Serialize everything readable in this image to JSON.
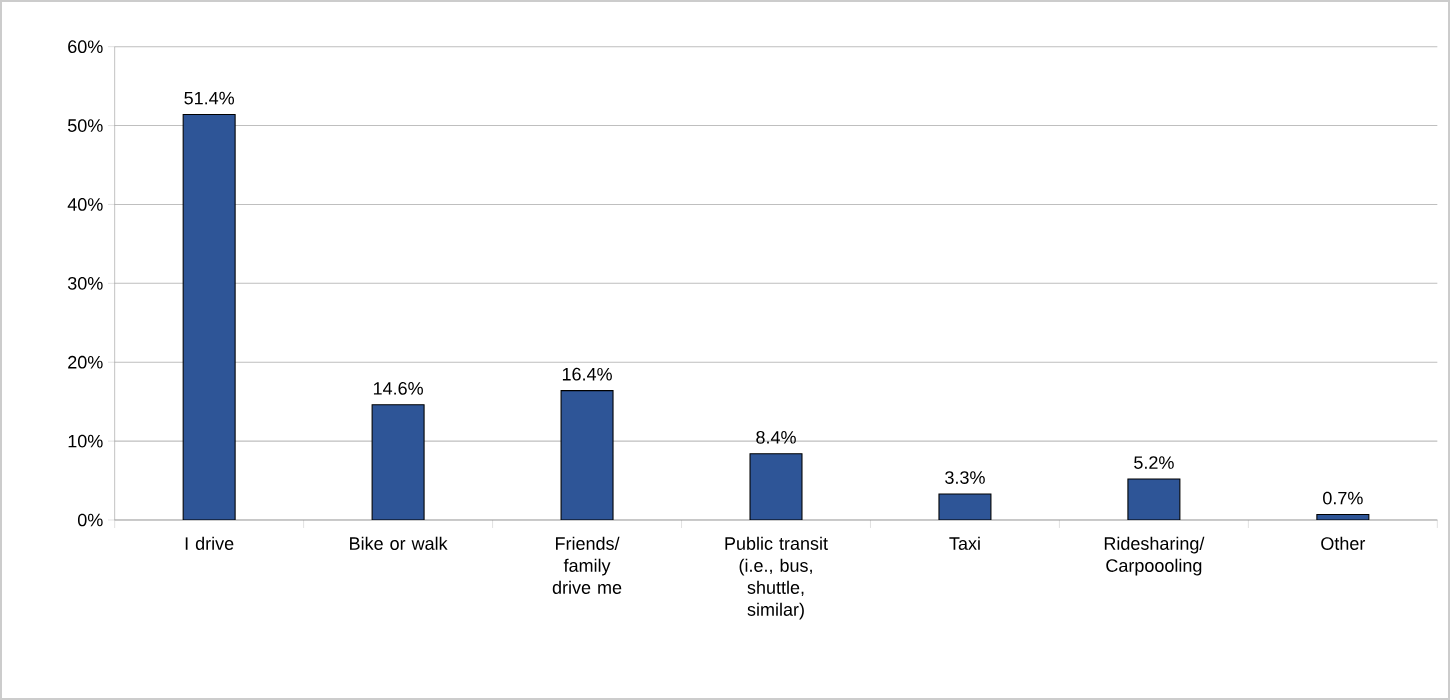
{
  "chart_data": {
    "type": "bar",
    "categories": [
      "I drive",
      "Bike or walk",
      "Friends/ family drive me",
      "Public transit (i.e., bus, shuttle, similar)",
      "Taxi",
      "Ridesharing/ Carpoooling",
      "Other"
    ],
    "values": [
      51.4,
      14.6,
      16.4,
      8.4,
      3.3,
      5.2,
      0.7
    ],
    "value_labels": [
      "51.4%",
      "14.6%",
      "16.4%",
      "8.4%",
      "3.3%",
      "5.2%",
      "0.7%"
    ],
    "color": "#2e5597",
    "ylim": [
      0,
      60
    ],
    "yticks": [
      {
        "value": 0,
        "label": "0%"
      },
      {
        "value": 10,
        "label": "10%"
      },
      {
        "value": 20,
        "label": "20%"
      },
      {
        "value": 30,
        "label": "30%"
      },
      {
        "value": 40,
        "label": "40%"
      },
      {
        "value": 50,
        "label": "50%"
      },
      {
        "value": 60,
        "label": "60%"
      }
    ],
    "grid": "y"
  }
}
